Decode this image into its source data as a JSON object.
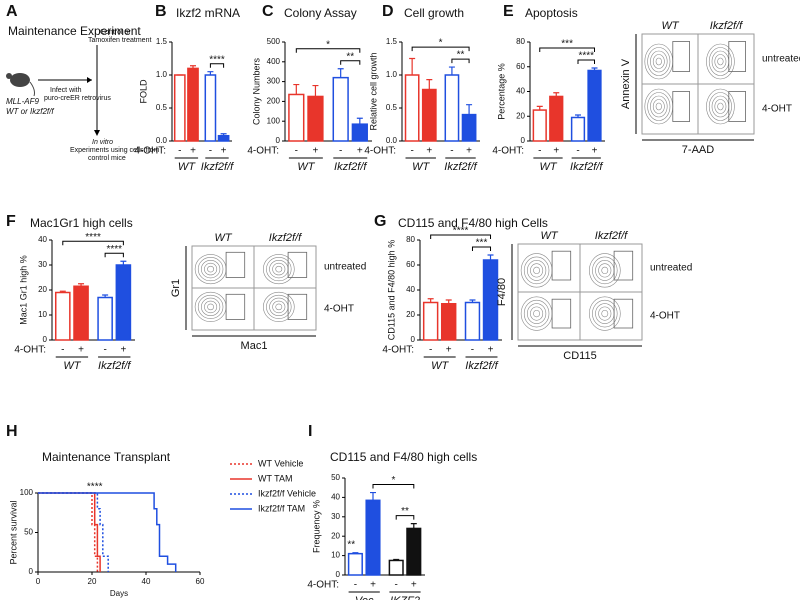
{
  "schematic": {
    "panel": "A",
    "title": "Maintenance Experiment",
    "mouse_lines": [
      "MLL-AF9",
      "WT or Ikzf2f/f"
    ],
    "infect_lines": [
      "Infect with",
      "puro-creER retrovirus"
    ],
    "treatment_lines": [
      "Control or",
      "Tamoxifen treatment"
    ],
    "experiment_lines": [
      "In vitro",
      "Experiments using cells from",
      "control mice"
    ]
  },
  "chart_data": [
    {
      "panel": "B",
      "type": "bar",
      "title": "Ikzf2 mRNA",
      "y_label": "FOLD",
      "treatment_label": "4-OHT:",
      "categories": [
        "-",
        "+",
        "-",
        "+"
      ],
      "groups": [
        "WT",
        "Ikzf2f/f"
      ],
      "values": [
        1.0,
        1.1,
        1.0,
        0.08
      ],
      "errors": [
        0,
        0.04,
        0.05,
        0.03
      ],
      "colors": [
        "#e8352b",
        "#e8352b",
        "#1f4fe0",
        "#1f4fe0"
      ],
      "filled": [
        false,
        true,
        false,
        true
      ],
      "ylim": [
        0,
        1.5
      ],
      "yticks": [
        {
          "value": 0,
          "label": "0.0"
        },
        0.5,
        {
          "value": 1,
          "label": "1.0"
        },
        {
          "value": 1.5,
          "label": "1.5"
        }
      ],
      "annotations": [
        "****"
      ]
    },
    {
      "panel": "C",
      "type": "bar",
      "title": "Colony Assay",
      "y_label": "Colony Numbers",
      "treatment_label": "4-OHT:",
      "categories": [
        "-",
        "+",
        "-",
        "+"
      ],
      "groups": [
        "WT",
        "Ikzf2f/f"
      ],
      "values": [
        235,
        225,
        320,
        85
      ],
      "errors": [
        50,
        55,
        45,
        30
      ],
      "colors": [
        "#e8352b",
        "#e8352b",
        "#1f4fe0",
        "#1f4fe0"
      ],
      "filled": [
        false,
        true,
        false,
        true
      ],
      "ylim": [
        0,
        500
      ],
      "yticks": [
        0,
        100,
        200,
        300,
        400,
        500
      ],
      "annotations": [
        "**",
        "*"
      ]
    },
    {
      "panel": "D",
      "type": "bar",
      "title": "Cell growth",
      "y_label": "Relative cell growth",
      "treatment_label": "4-OHT:",
      "categories": [
        "-",
        "+",
        "-",
        "+"
      ],
      "groups": [
        "WT",
        "Ikzf2f/f"
      ],
      "values": [
        1.0,
        0.78,
        1.0,
        0.4
      ],
      "errors": [
        0.25,
        0.15,
        0.12,
        0.15
      ],
      "colors": [
        "#e8352b",
        "#e8352b",
        "#1f4fe0",
        "#1f4fe0"
      ],
      "filled": [
        false,
        true,
        false,
        true
      ],
      "ylim": [
        0,
        1.5
      ],
      "yticks": [
        {
          "value": 0,
          "label": "0.0"
        },
        0.5,
        {
          "value": 1,
          "label": "1.0"
        },
        {
          "value": 1.5,
          "label": "1.5"
        }
      ],
      "annotations": [
        "**",
        "*"
      ]
    },
    {
      "panel": "E",
      "type": "bar",
      "title": "Apoptosis",
      "y_label": "Percentage %",
      "treatment_label": "4-OHT:",
      "categories": [
        "-",
        "+",
        "-",
        "+"
      ],
      "groups": [
        "WT",
        "Ikzf2f/f"
      ],
      "values": [
        25,
        36,
        19,
        57
      ],
      "errors": [
        3,
        3,
        2,
        2
      ],
      "colors": [
        "#e8352b",
        "#e8352b",
        "#1f4fe0",
        "#1f4fe0"
      ],
      "filled": [
        false,
        true,
        false,
        true
      ],
      "ylim": [
        0,
        80
      ],
      "yticks": [
        0,
        20,
        40,
        60,
        80
      ],
      "annotations": [
        "****",
        "***"
      ]
    },
    {
      "panel": "F",
      "type": "bar",
      "title": "Mac1Gr1 high cells",
      "y_label": "Mac1 Gr1 high %",
      "treatment_label": "4-OHT:",
      "categories": [
        "-",
        "+",
        "-",
        "+"
      ],
      "groups": [
        "WT",
        "Ikzf2f/f"
      ],
      "values": [
        19,
        21.5,
        17,
        30
      ],
      "errors": [
        0.5,
        1,
        1,
        1.5
      ],
      "colors": [
        "#e8352b",
        "#e8352b",
        "#1f4fe0",
        "#1f4fe0"
      ],
      "filled": [
        false,
        true,
        false,
        true
      ],
      "ylim": [
        0,
        40
      ],
      "yticks": [
        0,
        10,
        20,
        30,
        40
      ],
      "annotations": [
        "****",
        "****"
      ]
    },
    {
      "panel": "G",
      "type": "bar",
      "title": "CD115 and F4/80 high Cells",
      "y_label": "CD115 and F4/80 high %",
      "treatment_label": "4-OHT:",
      "categories": [
        "-",
        "+",
        "-",
        "+"
      ],
      "groups": [
        "WT",
        "Ikzf2f/f"
      ],
      "values": [
        30,
        29,
        30,
        64
      ],
      "errors": [
        3,
        3,
        2,
        4
      ],
      "colors": [
        "#e8352b",
        "#e8352b",
        "#1f4fe0",
        "#1f4fe0"
      ],
      "filled": [
        false,
        true,
        false,
        true
      ],
      "ylim": [
        0,
        80
      ],
      "yticks": [
        0,
        20,
        40,
        60,
        80
      ],
      "annotations": [
        "***",
        "****"
      ]
    },
    {
      "panel": "H",
      "type": "line",
      "title": "Maintenance Transplant",
      "x_label": "Days",
      "y_label": "Percent survival",
      "xlim": [
        0,
        60
      ],
      "ylim": [
        0,
        100
      ],
      "xticks": [
        0,
        20,
        40,
        60
      ],
      "yticks": [
        0,
        50,
        100
      ],
      "annotations": [
        "****"
      ],
      "series": [
        {
          "name": "WT Vehicle",
          "color": "#e8352b",
          "style": "dotted",
          "x": [
            0,
            20,
            20,
            21,
            21,
            22,
            22
          ],
          "values": [
            100,
            100,
            60,
            60,
            20,
            20,
            0
          ]
        },
        {
          "name": "WT TAM",
          "color": "#e8352b",
          "style": "solid",
          "x": [
            0,
            21,
            21,
            22,
            22,
            23,
            23
          ],
          "values": [
            100,
            100,
            60,
            60,
            20,
            20,
            0
          ]
        },
        {
          "name": "Ikzf2f/f Vehicle",
          "color": "#1f4fe0",
          "style": "dotted",
          "x": [
            0,
            22,
            22,
            23,
            23,
            24,
            24,
            26,
            26
          ],
          "values": [
            100,
            100,
            80,
            80,
            60,
            60,
            20,
            20,
            0
          ]
        },
        {
          "name": "Ikzf2f/f TAM",
          "color": "#1f4fe0",
          "style": "solid",
          "x": [
            0,
            43,
            43,
            44,
            44,
            45,
            45,
            48,
            48,
            51,
            51
          ],
          "values": [
            100,
            100,
            80,
            80,
            60,
            60,
            20,
            20,
            10,
            10,
            0
          ]
        }
      ]
    },
    {
      "panel": "I",
      "type": "bar",
      "title": "CD115 and F4/80 high cells",
      "y_label": "Frequency %",
      "treatment_label": "4-OHT:",
      "categories": [
        "-",
        "+",
        "-",
        "+"
      ],
      "groups": [
        "Vec",
        "IKZF2"
      ],
      "values": [
        11,
        38.5,
        7.5,
        24
      ],
      "errors": [
        0.5,
        4,
        0.5,
        2.5
      ],
      "colors": [
        "#1f4fe0",
        "#1f4fe0",
        "#111111",
        "#111111"
      ],
      "filled": [
        false,
        true,
        false,
        true
      ],
      "ylim": [
        0,
        50
      ],
      "yticks": [
        0,
        10,
        20,
        30,
        40,
        50
      ],
      "annotations": [
        "**",
        "*",
        "**"
      ]
    }
  ],
  "flow_plots": [
    {
      "columns": [
        "WT",
        "Ikzf2f/f"
      ],
      "rows": [
        "untreated",
        "4-OHT"
      ],
      "x_label": "7-AAD",
      "y_label": "Annexin V"
    },
    {
      "columns": [
        "WT",
        "Ikzf2f/f"
      ],
      "rows": [
        "untreated",
        "4-OHT"
      ],
      "x_label": "Mac1",
      "y_label": "Gr1"
    },
    {
      "columns": [
        "WT",
        "Ikzf2f/f"
      ],
      "rows": [
        "untreated",
        "4-OHT"
      ],
      "x_label": "CD115",
      "y_label": "F4/80"
    }
  ]
}
